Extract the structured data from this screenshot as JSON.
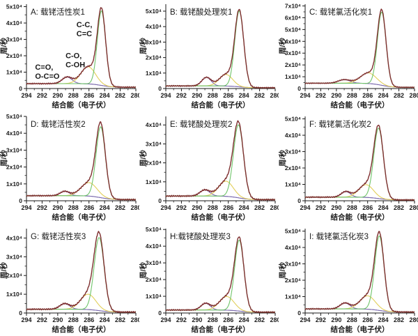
{
  "figure": {
    "description": "3x3 grid of fitted XPS C 1s spectra",
    "background": "#ffffff",
    "rows": 3,
    "cols": 3
  },
  "axes": {
    "xlabel": "结合能（电子伏）",
    "ylabel": "周/秒",
    "x_range_ev": [
      294,
      280
    ],
    "x_ticks_ev": [
      294,
      292,
      290,
      288,
      286,
      284,
      282,
      280
    ],
    "x_tick_labels": [
      "294",
      "292",
      "290",
      "288",
      "286",
      "284",
      "282",
      "280"
    ]
  },
  "colors": {
    "envelope": "#7e2f2f",
    "peak_cc": "#6fc46a",
    "peak_co": "#e2cf5a",
    "peak_oco": "#7b68ae",
    "baseline": "#a6b0c6",
    "axis": "#1a1a1a"
  },
  "chart_data": [
    {
      "type": "line",
      "title": "A: 载铑活性炭1",
      "y_tick_labels": [
        "0",
        "1x10⁴",
        "2x10⁴",
        "3x10⁴",
        "4x10⁴",
        "5x10⁴"
      ],
      "y_tick_max_1e4": 5,
      "y_plot_max_1e4": 5.15,
      "baseline_1e4": {
        "left": 0.3,
        "right": 0.08
      },
      "peaks": [
        {
          "assignment": "C-C, C=C",
          "series": "cc",
          "center_ev": 284.4,
          "height_1e4": 4.55,
          "fwhm_ev": 1.25
        },
        {
          "assignment": "C-O, C-OH",
          "series": "co",
          "center_ev": 286.1,
          "height_1e4": 1.05,
          "fwhm_ev": 2.2
        },
        {
          "assignment": "C=O, O-C=O",
          "series": "oco",
          "center_ev": 288.8,
          "height_1e4": 0.4,
          "fwhm_ev": 1.5
        }
      ],
      "annotations": [
        {
          "lines": [
            "C-C,",
            "C=C"
          ],
          "x_ev": 287.6,
          "y_1e4": 3.75
        },
        {
          "lines": [
            "C-O,",
            "C-OH"
          ],
          "x_ev": 289.0,
          "y_1e4": 1.85
        },
        {
          "lines": [
            "C=O,",
            "O-C=O"
          ],
          "x_ev": 292.9,
          "y_1e4": 1.15
        }
      ]
    },
    {
      "type": "line",
      "title": "B: 载铑酸处理炭1",
      "y_tick_labels": [
        "0",
        "1x10⁴",
        "2x10⁴",
        "3x10⁴",
        "4x10⁴",
        "5x10⁴"
      ],
      "y_tick_max_1e4": 5,
      "y_plot_max_1e4": 5.45,
      "baseline_1e4": {
        "left": 0.17,
        "right": 0.05
      },
      "peaks": [
        {
          "assignment": "C-C, C=C",
          "series": "cc",
          "center_ev": 284.6,
          "height_1e4": 4.9,
          "fwhm_ev": 1.35
        },
        {
          "assignment": "C-O, C-OH",
          "series": "co",
          "center_ev": 286.3,
          "height_1e4": 0.75,
          "fwhm_ev": 2.0
        },
        {
          "assignment": "C=O, O-C=O",
          "series": "oco",
          "center_ev": 288.8,
          "height_1e4": 0.55,
          "fwhm_ev": 1.4
        }
      ],
      "annotations": []
    },
    {
      "type": "line",
      "title": "C: 载铑氯活化炭1",
      "y_tick_labels": [
        "0",
        "1x10⁴",
        "2x10⁴",
        "3x10⁴",
        "4x10⁴",
        "5x10⁴",
        "6x10⁴",
        "7x10⁴"
      ],
      "y_tick_max_1e4": 7,
      "y_plot_max_1e4": 7.15,
      "baseline_1e4": {
        "left": 0.45,
        "right": 0.1
      },
      "peaks": [
        {
          "assignment": "C-C, C=C",
          "series": "cc",
          "center_ev": 284.2,
          "height_1e4": 6.2,
          "fwhm_ev": 1.3
        },
        {
          "assignment": "C-O, C-OH",
          "series": "co",
          "center_ev": 285.9,
          "height_1e4": 0.9,
          "fwhm_ev": 2.4
        },
        {
          "assignment": "C=O, O-C=O",
          "series": "oco",
          "center_ev": 289.0,
          "height_1e4": 0.3,
          "fwhm_ev": 1.8
        }
      ],
      "annotations": []
    },
    {
      "type": "line",
      "title": "D: 载铑活性炭2",
      "y_tick_labels": [
        "0",
        "1x10⁴",
        "2x10⁴",
        "3x10⁴",
        "4x10⁴",
        "5x10⁴"
      ],
      "y_tick_max_1e4": 5,
      "y_plot_max_1e4": 5.0,
      "baseline_1e4": {
        "left": 0.3,
        "right": 0.07
      },
      "peaks": [
        {
          "assignment": "C-C, C=C",
          "series": "cc",
          "center_ev": 284.5,
          "height_1e4": 4.2,
          "fwhm_ev": 1.4
        },
        {
          "assignment": "C-O, C-OH",
          "series": "co",
          "center_ev": 286.0,
          "height_1e4": 0.8,
          "fwhm_ev": 2.4
        },
        {
          "assignment": "C=O, O-C=O",
          "series": "oco",
          "center_ev": 289.1,
          "height_1e4": 0.26,
          "fwhm_ev": 1.4
        }
      ],
      "annotations": []
    },
    {
      "type": "line",
      "title": "E: 载铑酸处理炭2",
      "y_tick_labels": [
        "0",
        "1x10⁴",
        "2x10⁴",
        "3x10⁴",
        "4x10⁴"
      ],
      "y_tick_max_1e4": 4,
      "y_plot_max_1e4": 4.45,
      "baseline_1e4": {
        "left": 0.25,
        "right": 0.06
      },
      "peaks": [
        {
          "assignment": "C-C, C=C",
          "series": "cc",
          "center_ev": 284.7,
          "height_1e4": 3.85,
          "fwhm_ev": 1.5
        },
        {
          "assignment": "C-O, C-OH",
          "series": "co",
          "center_ev": 286.3,
          "height_1e4": 0.8,
          "fwhm_ev": 2.2
        },
        {
          "assignment": "C=O, O-C=O",
          "series": "oco",
          "center_ev": 289.0,
          "height_1e4": 0.32,
          "fwhm_ev": 1.5
        }
      ],
      "annotations": []
    },
    {
      "type": "line",
      "title": "F: 载铑氯活化炭2",
      "y_tick_labels": [
        "0",
        "1x10⁴",
        "2x10⁴",
        "3x10⁴",
        "4x10⁴",
        "5x10⁴"
      ],
      "y_tick_max_1e4": 5,
      "y_plot_max_1e4": 5.15,
      "baseline_1e4": {
        "left": 0.22,
        "right": 0.05
      },
      "peaks": [
        {
          "assignment": "C-C, C=C",
          "series": "cc",
          "center_ev": 284.6,
          "height_1e4": 4.3,
          "fwhm_ev": 1.45
        },
        {
          "assignment": "C-O, C-OH",
          "series": "co",
          "center_ev": 286.2,
          "height_1e4": 0.78,
          "fwhm_ev": 2.2
        },
        {
          "assignment": "C=O, O-C=O",
          "series": "oco",
          "center_ev": 288.8,
          "height_1e4": 0.34,
          "fwhm_ev": 1.4
        }
      ],
      "annotations": []
    },
    {
      "type": "line",
      "title": "G: 载铑活性炭3",
      "y_tick_labels": [
        "0",
        "1x10⁴",
        "2x10⁴",
        "3x10⁴",
        "4x10⁴"
      ],
      "y_tick_max_1e4": 4,
      "y_plot_max_1e4": 4.5,
      "baseline_1e4": {
        "left": 0.2,
        "right": 0.05
      },
      "peaks": [
        {
          "assignment": "C-C, C=C",
          "series": "cc",
          "center_ev": 284.7,
          "height_1e4": 3.9,
          "fwhm_ev": 1.5
        },
        {
          "assignment": "C-O, C-OH",
          "series": "co",
          "center_ev": 286.1,
          "height_1e4": 0.82,
          "fwhm_ev": 2.3
        },
        {
          "assignment": "C=O, O-C=O",
          "series": "oco",
          "center_ev": 289.1,
          "height_1e4": 0.3,
          "fwhm_ev": 1.5
        }
      ],
      "annotations": []
    },
    {
      "type": "line",
      "title": "H:载铑酸处理炭3",
      "y_tick_labels": [
        "0",
        "1x10⁴",
        "2x10⁴",
        "3x10⁴",
        "4x10⁴",
        "5x10⁴"
      ],
      "y_tick_max_1e4": 5,
      "y_plot_max_1e4": 5.05,
      "baseline_1e4": {
        "left": 0.18,
        "right": 0.05
      },
      "peaks": [
        {
          "assignment": "C-C, C=C",
          "series": "cc",
          "center_ev": 284.6,
          "height_1e4": 4.25,
          "fwhm_ev": 1.4
        },
        {
          "assignment": "C-O, C-OH",
          "series": "co",
          "center_ev": 286.2,
          "height_1e4": 0.82,
          "fwhm_ev": 2.2
        },
        {
          "assignment": "C=O, O-C=O",
          "series": "oco",
          "center_ev": 288.9,
          "height_1e4": 0.4,
          "fwhm_ev": 1.4
        }
      ],
      "annotations": []
    },
    {
      "type": "line",
      "title": "I: 载铑氯活化炭3",
      "y_tick_labels": [
        "0",
        "1x10⁴",
        "2x10⁴",
        "3x10⁴",
        "4x10⁴",
        "5x10⁴"
      ],
      "y_tick_max_1e4": 5,
      "y_plot_max_1e4": 5.15,
      "baseline_1e4": {
        "left": 0.25,
        "right": 0.06
      },
      "peaks": [
        {
          "assignment": "C-C, C=C",
          "series": "cc",
          "center_ev": 284.5,
          "height_1e4": 4.55,
          "fwhm_ev": 1.4
        },
        {
          "assignment": "C-O, C-OH",
          "series": "co",
          "center_ev": 286.0,
          "height_1e4": 0.82,
          "fwhm_ev": 2.3
        },
        {
          "assignment": "C=O, O-C=O",
          "series": "oco",
          "center_ev": 288.9,
          "height_1e4": 0.36,
          "fwhm_ev": 1.5
        }
      ],
      "annotations": []
    }
  ]
}
